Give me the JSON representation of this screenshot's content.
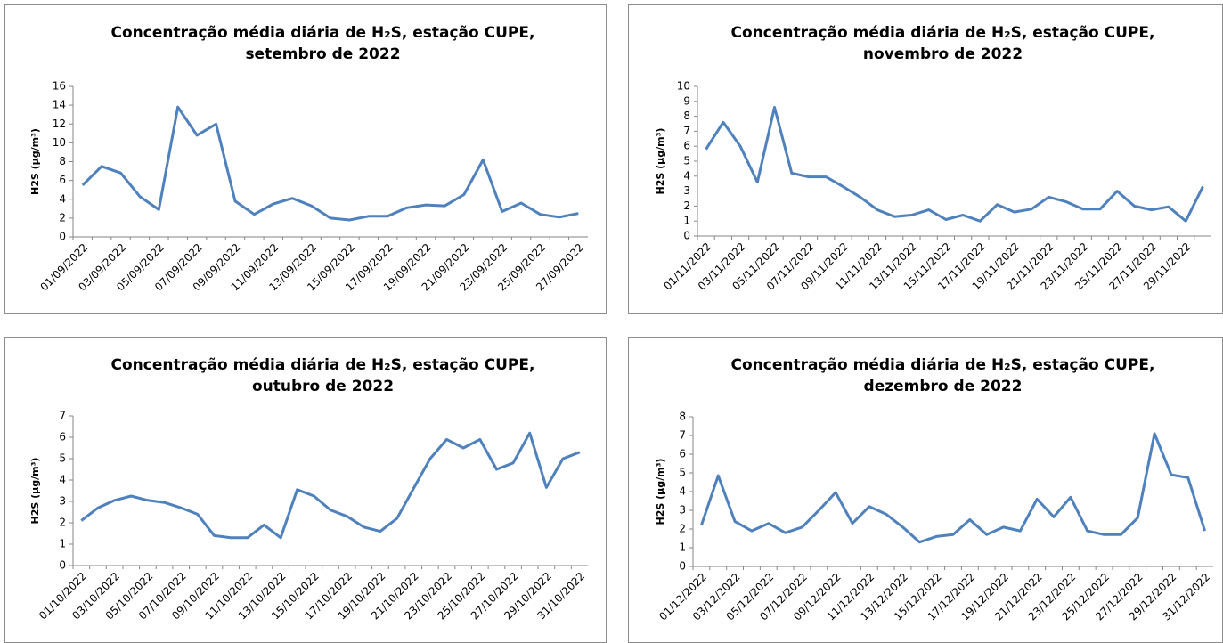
{
  "chart_data": [
    {
      "type": "line",
      "title": [
        "Concentração média diária de H₂S, estação CUPE,",
        "setembro de 2022"
      ],
      "y_label": "H2S (µg/m³)",
      "categories": [
        "01/09/2022",
        null,
        "03/09/2022",
        null,
        "05/09/2022",
        null,
        "07/09/2022",
        null,
        "09/09/2022",
        null,
        "11/09/2022",
        null,
        "13/09/2022",
        null,
        "15/09/2022",
        null,
        "17/09/2022",
        null,
        "19/09/2022",
        null,
        "21/09/2022",
        null,
        "23/09/2022",
        null,
        "25/09/2022",
        null,
        "27/09/2022"
      ],
      "values": [
        5.5,
        7.5,
        6.8,
        4.3,
        2.9,
        13.8,
        10.8,
        12.0,
        3.8,
        2.4,
        3.5,
        4.1,
        3.3,
        2.0,
        1.8,
        2.2,
        2.2,
        3.1,
        3.4,
        3.3,
        4.5,
        8.2,
        2.7,
        3.6,
        2.4,
        2.1,
        2.5
      ],
      "color": "#4f81bd",
      "ylim": [
        0,
        16
      ],
      "yticks": [
        0,
        2,
        4,
        6,
        8,
        10,
        12,
        14,
        16
      ],
      "grid": false
    },
    {
      "type": "line",
      "title": [
        "Concentração média diária de H₂S, estação CUPE,",
        "novembro de 2022"
      ],
      "y_label": "H2S (µg/m³)",
      "categories": [
        "01/11/2022",
        null,
        "03/11/2022",
        null,
        "05/11/2022",
        null,
        "07/11/2022",
        null,
        "09/11/2022",
        null,
        "11/11/2022",
        null,
        "13/11/2022",
        null,
        "15/11/2022",
        null,
        "17/11/2022",
        null,
        "19/11/2022",
        null,
        "21/11/2022",
        null,
        "23/11/2022",
        null,
        "25/11/2022",
        null,
        "27/11/2022",
        null,
        "29/11/2022",
        null
      ],
      "values": [
        5.8,
        7.6,
        6.0,
        3.6,
        8.6,
        4.2,
        3.95,
        3.95,
        3.3,
        2.6,
        1.75,
        1.3,
        1.4,
        1.75,
        1.1,
        1.4,
        1.0,
        2.1,
        1.6,
        1.8,
        2.6,
        2.3,
        1.8,
        1.8,
        3.0,
        2.0,
        1.75,
        1.95,
        1.0,
        3.3
      ],
      "color": "#4f81bd",
      "ylim": [
        0,
        10
      ],
      "yticks": [
        0,
        1,
        2,
        3,
        4,
        5,
        6,
        7,
        8,
        9,
        10
      ],
      "grid": false
    },
    {
      "type": "line",
      "title": [
        "Concentração média diária de H₂S, estação CUPE,",
        "outubro de 2022"
      ],
      "y_label": "H2S (µg/m³)",
      "categories": [
        "01/10/2022",
        null,
        "03/10/2022",
        null,
        "05/10/2022",
        null,
        "07/10/2022",
        null,
        "09/10/2022",
        null,
        "11/10/2022",
        null,
        "13/10/2022",
        null,
        "15/10/2022",
        null,
        "17/10/2022",
        null,
        "19/10/2022",
        null,
        "21/10/2022",
        null,
        "23/10/2022",
        null,
        "25/10/2022",
        null,
        "27/10/2022",
        null,
        "29/10/2022",
        null,
        "31/10/2022"
      ],
      "values": [
        2.1,
        2.7,
        3.05,
        3.25,
        3.05,
        2.95,
        2.7,
        2.4,
        1.4,
        1.3,
        1.3,
        1.9,
        1.3,
        3.55,
        3.25,
        2.6,
        2.3,
        1.8,
        1.6,
        2.2,
        3.6,
        5.0,
        5.9,
        5.5,
        5.9,
        4.5,
        4.8,
        6.2,
        3.65,
        5.0,
        5.3
      ],
      "color": "#4f81bd",
      "ylim": [
        0,
        7
      ],
      "yticks": [
        0,
        1,
        2,
        3,
        4,
        5,
        6,
        7
      ],
      "grid": false
    },
    {
      "type": "line",
      "title": [
        "Concentração média diária de H₂S, estação CUPE,",
        "dezembro de 2022"
      ],
      "y_label": "H2S (µg/m³)",
      "categories": [
        "01/12/2022",
        null,
        "03/12/2022",
        null,
        "05/12/2022",
        null,
        "07/12/2022",
        null,
        "09/12/2022",
        null,
        "11/12/2022",
        null,
        "13/12/2022",
        null,
        "15/12/2022",
        null,
        "17/12/2022",
        null,
        "19/12/2022",
        null,
        "21/12/2022",
        null,
        "23/12/2022",
        null,
        "25/12/2022",
        null,
        "27/12/2022",
        null,
        "29/12/2022",
        null,
        "31/12/2022"
      ],
      "values": [
        2.2,
        4.85,
        2.4,
        1.9,
        2.3,
        1.8,
        2.1,
        3.0,
        3.95,
        2.3,
        3.2,
        2.8,
        2.1,
        1.3,
        1.6,
        1.7,
        2.5,
        1.7,
        2.1,
        1.9,
        3.6,
        2.65,
        3.7,
        1.9,
        1.7,
        1.7,
        2.6,
        7.1,
        4.9,
        4.75,
        1.9
      ],
      "color": "#4f81bd",
      "ylim": [
        0,
        8
      ],
      "yticks": [
        0,
        1,
        2,
        3,
        4,
        5,
        6,
        7,
        8
      ],
      "grid": false
    }
  ]
}
